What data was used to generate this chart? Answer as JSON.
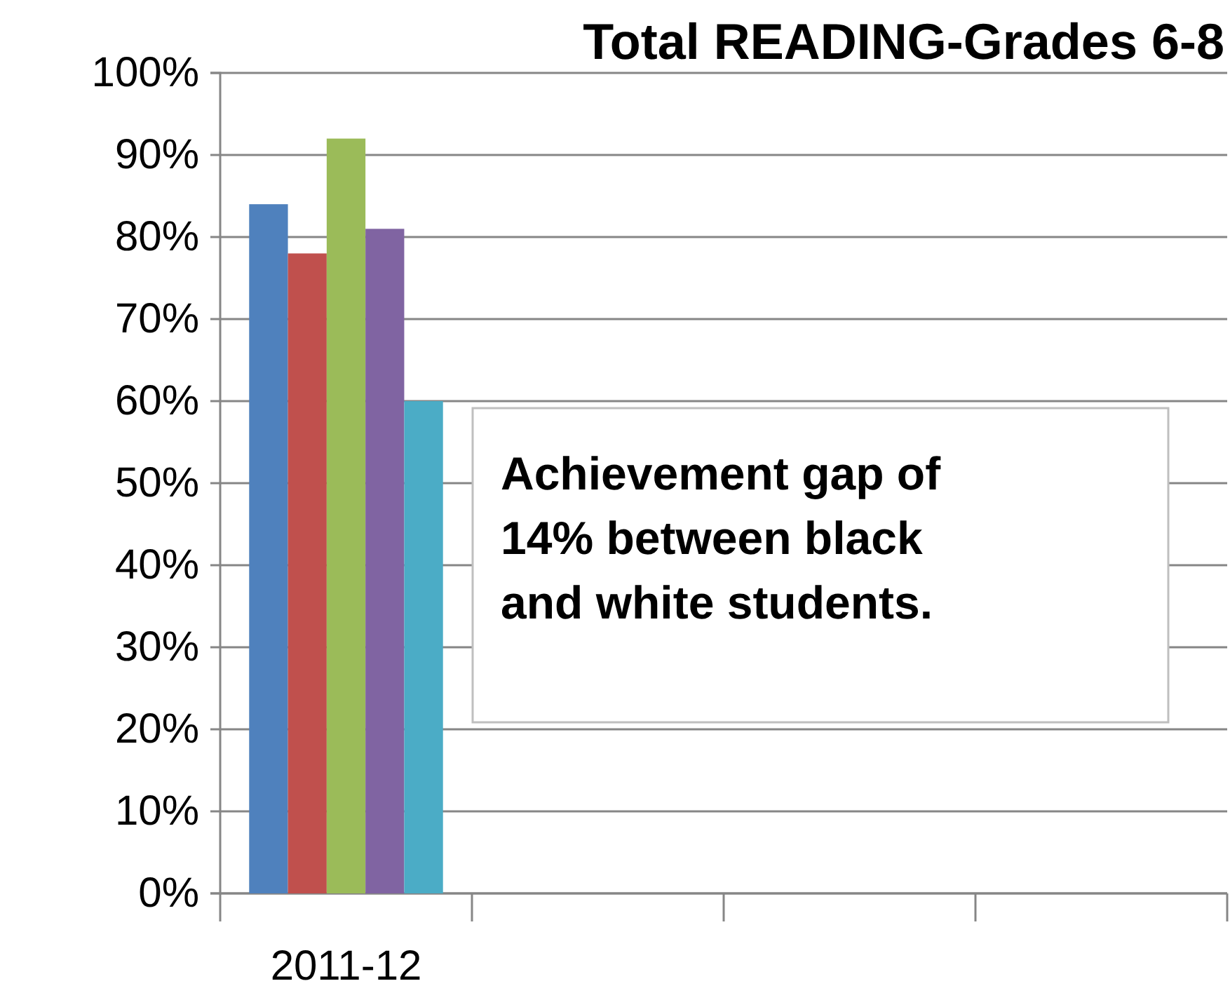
{
  "chart_data": {
    "type": "bar",
    "title": "Total READING-Grades 6-8",
    "categories": [
      "2011-12",
      null,
      null,
      null
    ],
    "series": [
      {
        "color": "#4f81bd",
        "values": [
          84,
          null,
          null,
          null
        ]
      },
      {
        "color": "#c0504d",
        "values": [
          78,
          null,
          null,
          null
        ]
      },
      {
        "color": "#9bbb59",
        "values": [
          92,
          null,
          null,
          null
        ]
      },
      {
        "color": "#8064a2",
        "values": [
          81,
          null,
          null,
          null
        ]
      },
      {
        "color": "#4bacc6",
        "values": [
          60,
          null,
          null,
          null
        ]
      }
    ],
    "ylim": [
      0,
      100
    ],
    "yticks": [
      {
        "value": 0,
        "label": "0%"
      },
      {
        "value": 10,
        "label": "10%"
      },
      {
        "value": 20,
        "label": "20%"
      },
      {
        "value": 30,
        "label": "30%"
      },
      {
        "value": 40,
        "label": "40%"
      },
      {
        "value": 50,
        "label": "50%"
      },
      {
        "value": 60,
        "label": "60%"
      },
      {
        "value": 70,
        "label": "70%"
      },
      {
        "value": 80,
        "label": "80%"
      },
      {
        "value": 90,
        "label": "90%"
      },
      {
        "value": 100,
        "label": "100%"
      }
    ],
    "grid": "y",
    "annotations": [
      "Achievement gap of 14% between black and white students."
    ]
  }
}
